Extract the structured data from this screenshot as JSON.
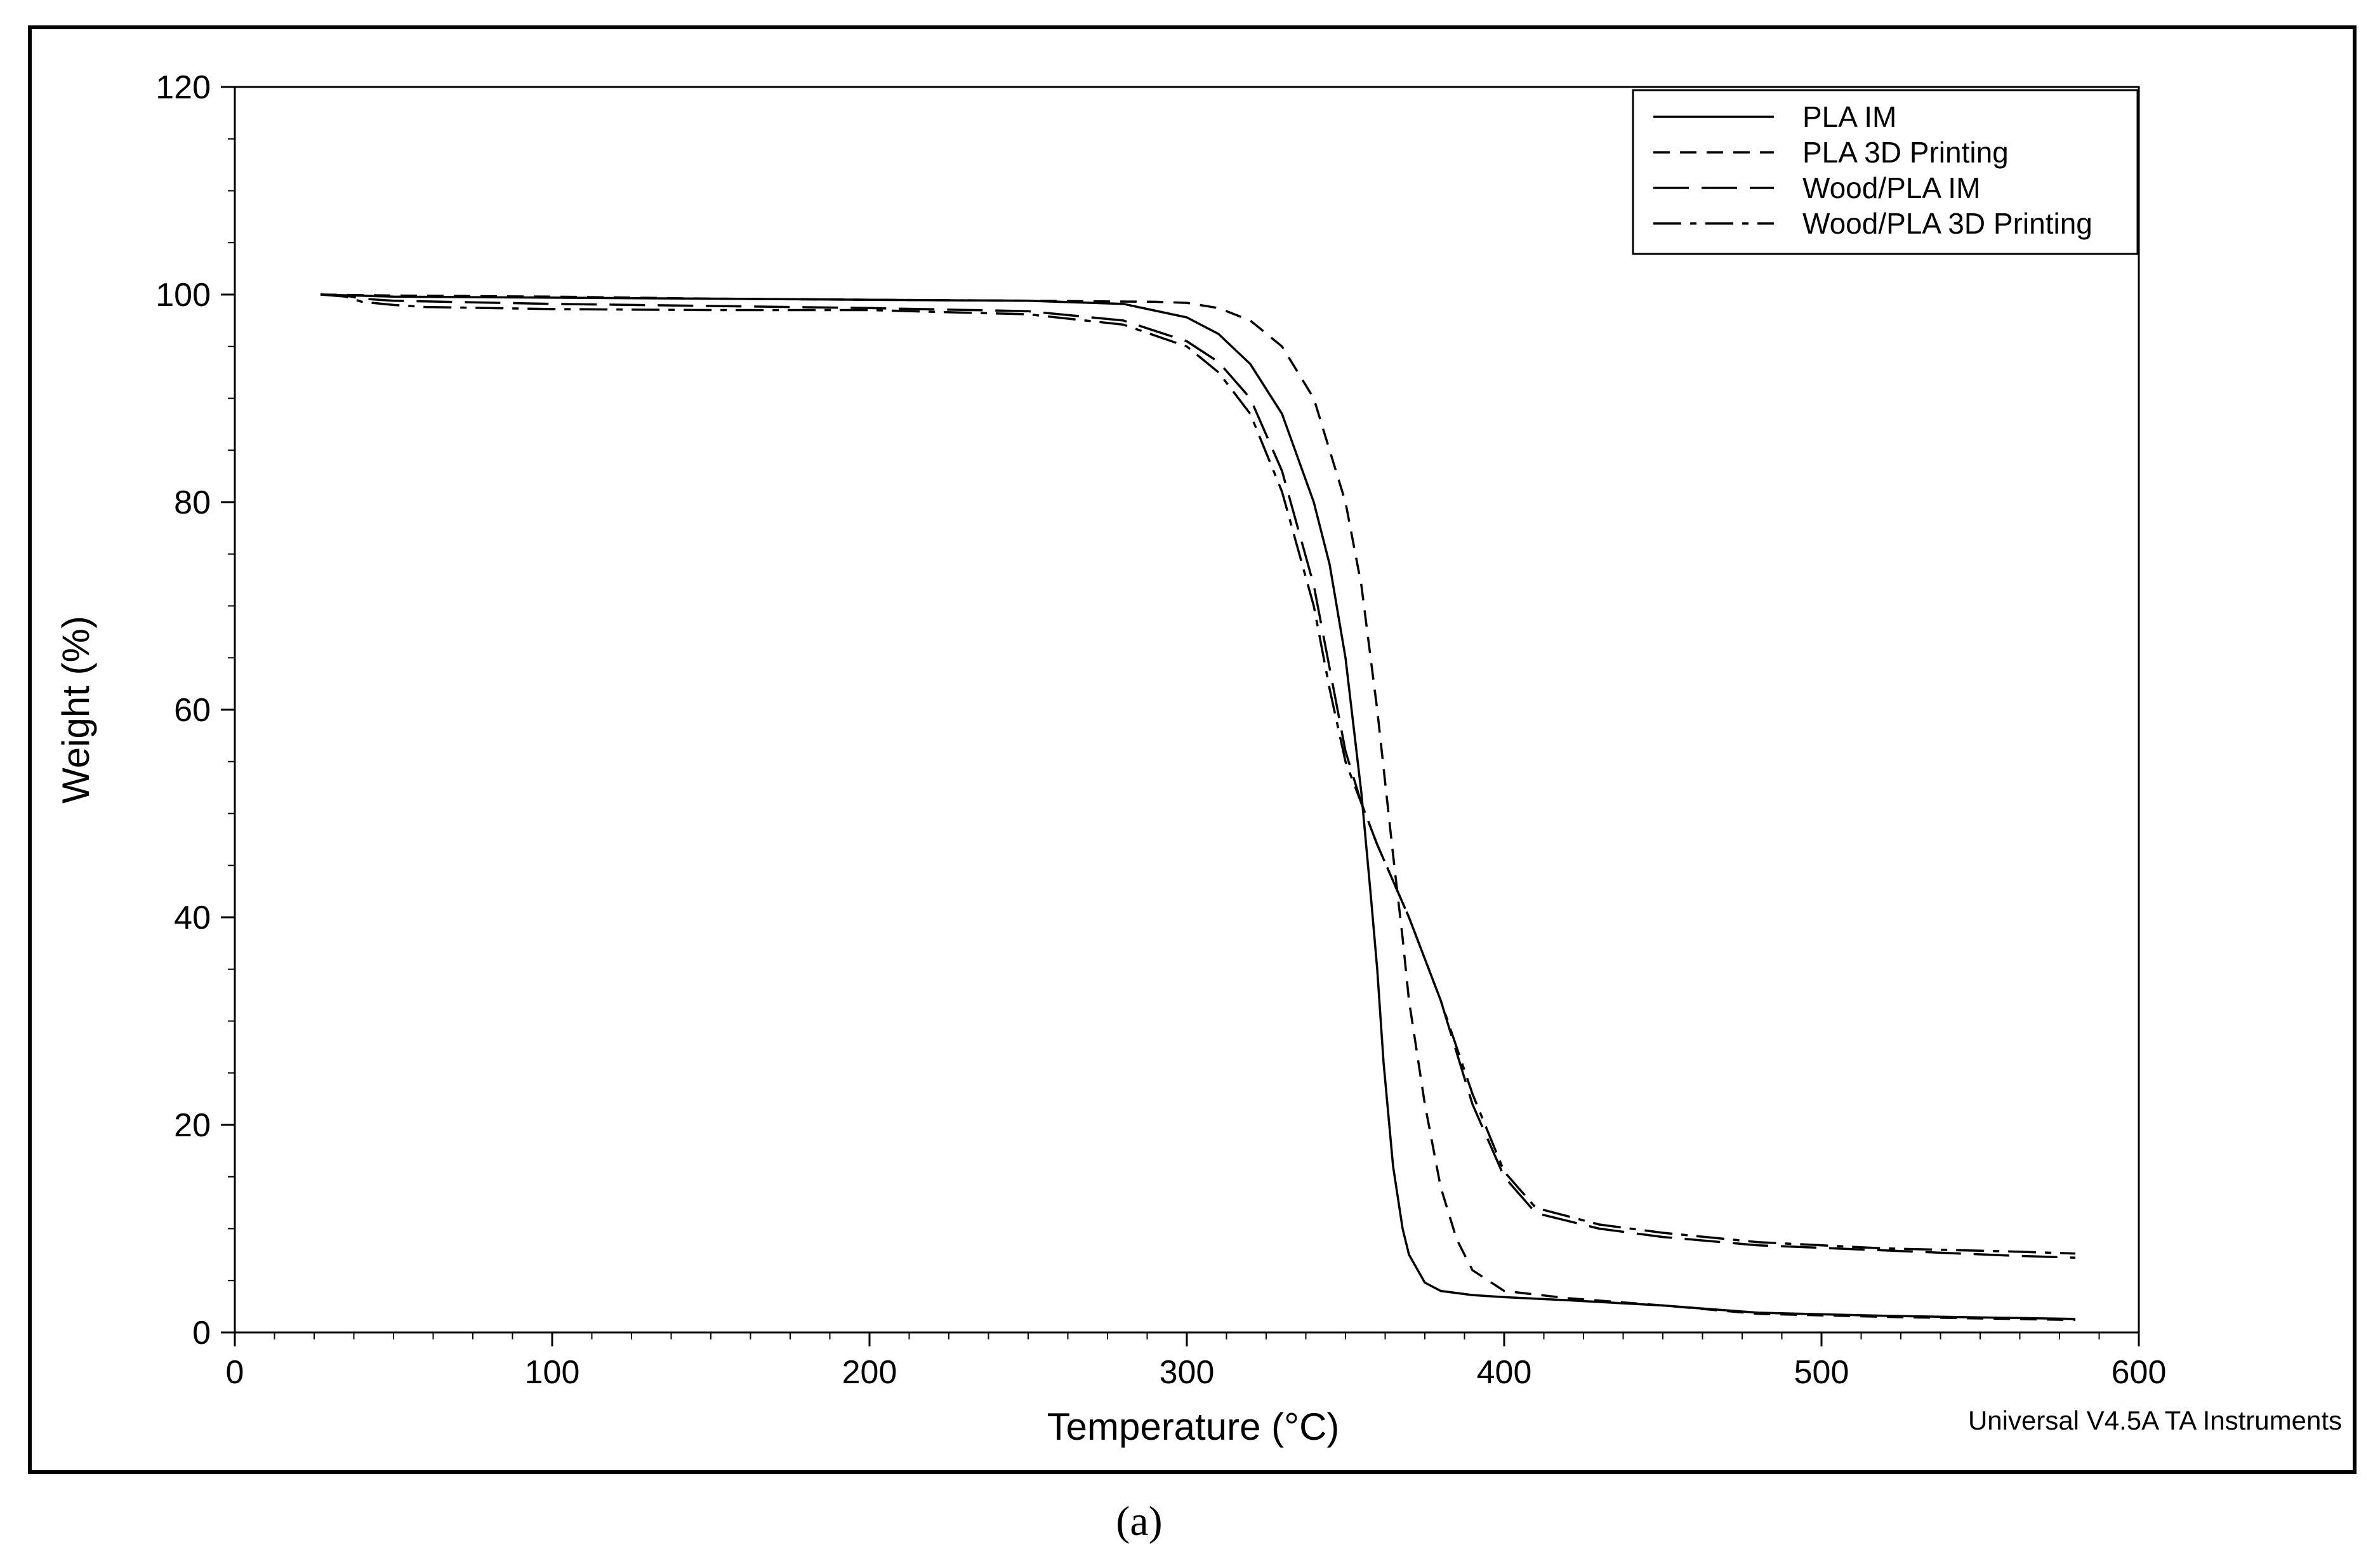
{
  "caption": "(a)",
  "footer": "Universal V4.5A TA Instruments",
  "chart_data": {
    "type": "line",
    "title": "",
    "xlabel": "Temperature (°C)",
    "ylabel": "Weight (%)",
    "xlim": [
      0,
      600
    ],
    "ylim": [
      0,
      120
    ],
    "xticks": [
      0,
      100,
      200,
      300,
      400,
      500,
      600
    ],
    "yticks": [
      0,
      20,
      40,
      60,
      80,
      100,
      120
    ],
    "xtick_labels": [
      "0",
      "100",
      "200",
      "300",
      "400",
      "500",
      "600"
    ],
    "ytick_labels": [
      "0",
      "20",
      "40",
      "60",
      "80",
      "100",
      "120"
    ],
    "grid": false,
    "legend_position": "top-right",
    "colors": {
      "line": "#000000",
      "frame": "#000000",
      "background": "#ffffff"
    },
    "series": [
      {
        "name": "PLA IM",
        "dash": "solid",
        "x": [
          27,
          50,
          100,
          150,
          200,
          250,
          280,
          300,
          310,
          320,
          330,
          340,
          345,
          350,
          355,
          358,
          360,
          362,
          365,
          368,
          370,
          375,
          380,
          390,
          400,
          420,
          450,
          480,
          520,
          560,
          580
        ],
        "y": [
          100,
          99.8,
          99.7,
          99.6,
          99.5,
          99.4,
          99.1,
          97.8,
          96.2,
          93.3,
          88.5,
          80,
          74,
          65,
          52,
          42,
          35,
          26,
          16,
          10,
          7.5,
          4.8,
          4,
          3.6,
          3.4,
          3.1,
          2.6,
          1.9,
          1.6,
          1.4,
          1.3
        ]
      },
      {
        "name": "PLA 3D Printing",
        "dash": "dashed",
        "x": [
          27,
          50,
          100,
          150,
          200,
          250,
          290,
          300,
          310,
          320,
          330,
          340,
          350,
          355,
          360,
          365,
          368,
          370,
          375,
          380,
          385,
          390,
          400,
          420,
          450,
          480,
          520,
          560,
          580
        ],
        "y": [
          100,
          99.9,
          99.8,
          99.6,
          99.5,
          99.4,
          99.3,
          99.2,
          98.7,
          97.5,
          95,
          90,
          80,
          72,
          60,
          46,
          38,
          32,
          22,
          14,
          9,
          6,
          4,
          3.3,
          2.6,
          1.8,
          1.5,
          1.3,
          1.2
        ]
      },
      {
        "name": "Wood/PLA IM",
        "dash": "long-dash",
        "x": [
          27,
          35,
          40,
          50,
          100,
          150,
          200,
          250,
          280,
          300,
          310,
          320,
          330,
          340,
          345,
          350,
          355,
          360,
          370,
          380,
          390,
          400,
          410,
          430,
          450,
          480,
          520,
          560,
          580
        ],
        "y": [
          100,
          99.9,
          99.6,
          99.4,
          99.1,
          98.9,
          98.7,
          98.4,
          97.5,
          95.5,
          93.5,
          90,
          83,
          72,
          64,
          56,
          51,
          47,
          40,
          32,
          22,
          15,
          11.5,
          10,
          9.2,
          8.4,
          7.9,
          7.4,
          7.2
        ]
      },
      {
        "name": "Wood/PLA 3D Printing",
        "dash": "dash-dot",
        "x": [
          27,
          35,
          40,
          50,
          60,
          100,
          150,
          200,
          250,
          280,
          300,
          310,
          320,
          330,
          340,
          345,
          350,
          355,
          360,
          370,
          380,
          390,
          400,
          410,
          430,
          450,
          480,
          520,
          560,
          580
        ],
        "y": [
          100,
          99.8,
          99.3,
          99,
          98.8,
          98.6,
          98.5,
          98.5,
          98.1,
          97.1,
          95,
          92.5,
          88.5,
          81,
          70,
          62,
          55,
          51,
          47,
          40,
          32,
          23,
          15.5,
          12,
          10.4,
          9.6,
          8.7,
          8.1,
          7.8,
          7.6
        ]
      }
    ]
  }
}
